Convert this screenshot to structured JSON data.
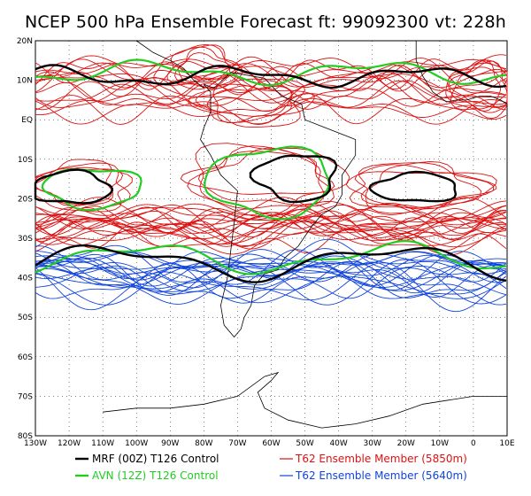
{
  "title": "NCEP 500 hPa Ensemble Forecast  ft: 99092300 vt: 228h",
  "map": {
    "lon_labels": [
      "130W",
      "120W",
      "110W",
      "100W",
      "90W",
      "80W",
      "70W",
      "60W",
      "50W",
      "40W",
      "30W",
      "20W",
      "10W",
      "0",
      "10E"
    ],
    "lat_labels": [
      "20N",
      "10N",
      "EQ",
      "10S",
      "20S",
      "30S",
      "40S",
      "50S",
      "60S",
      "70S",
      "80S"
    ],
    "lon_range": [
      -130,
      10
    ],
    "lat_range": [
      -80,
      20
    ]
  },
  "legend": [
    {
      "label": "MRF (00Z) T126 Control",
      "color": "#000000"
    },
    {
      "label": "AVN (12Z) T126 Control",
      "color": "#22cc22"
    },
    {
      "label": "T62 Ensemble Member (5850m)",
      "color": "#dd1111"
    },
    {
      "label": "T62 Ensemble Member (5640m)",
      "color": "#1144dd"
    }
  ],
  "colors": {
    "mrf": "#000000",
    "avn": "#22cc22",
    "member_5850": "#dd1111",
    "member_5640": "#1144dd",
    "coast": "#000000",
    "grid": "#000000"
  }
}
